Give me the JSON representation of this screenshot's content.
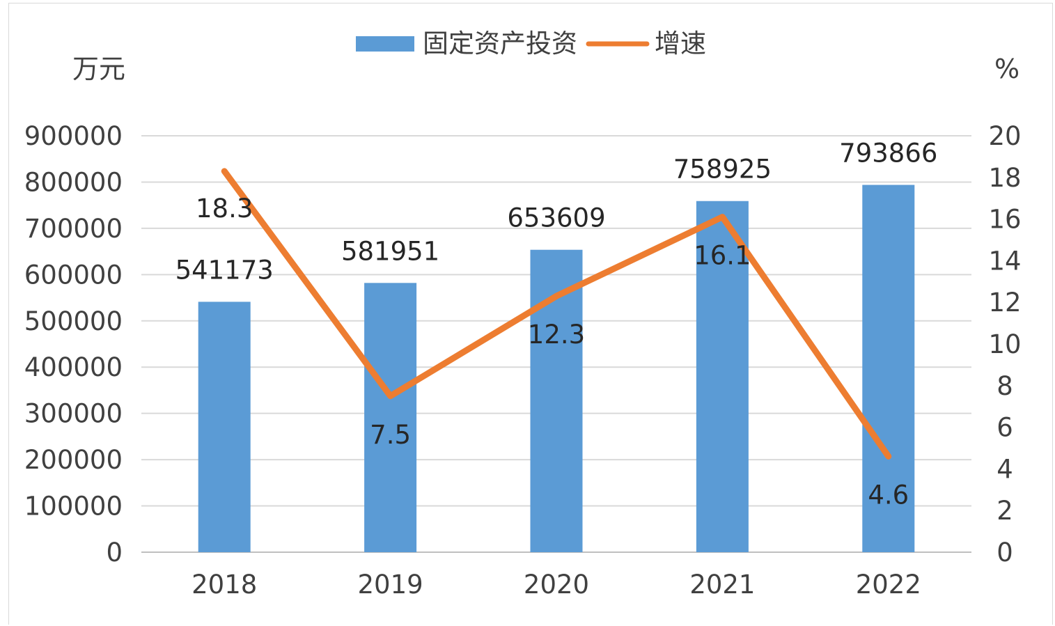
{
  "chart_data": {
    "type": "bar",
    "categories": [
      "2018",
      "2019",
      "2020",
      "2021",
      "2022"
    ],
    "series": [
      {
        "name": "固定资产投资",
        "type": "bar",
        "axis": "left",
        "color": "#5b9bd5",
        "values": [
          541173,
          581951,
          653609,
          758925,
          793866
        ],
        "labels": [
          "541173",
          "581951",
          "653609",
          "758925",
          "793866"
        ]
      },
      {
        "name": "增速",
        "type": "line",
        "axis": "right",
        "color": "#ed7d31",
        "values": [
          18.3,
          7.5,
          12.3,
          16.1,
          4.6
        ],
        "labels": [
          "18.3",
          "7.5",
          "12.3",
          "16.1",
          "4.6"
        ]
      }
    ],
    "left_axis": {
      "unit": "万元",
      "ylim": [
        0,
        900000
      ],
      "ticks": [
        "0",
        "100000",
        "200000",
        "300000",
        "400000",
        "500000",
        "600000",
        "700000",
        "800000",
        "900000"
      ]
    },
    "right_axis": {
      "unit": "%",
      "ylim": [
        0,
        20
      ],
      "ticks": [
        "0",
        "2",
        "4",
        "6",
        "8",
        "10",
        "12",
        "14",
        "16",
        "18",
        "20"
      ]
    },
    "grid": true,
    "legend_position": "top"
  }
}
